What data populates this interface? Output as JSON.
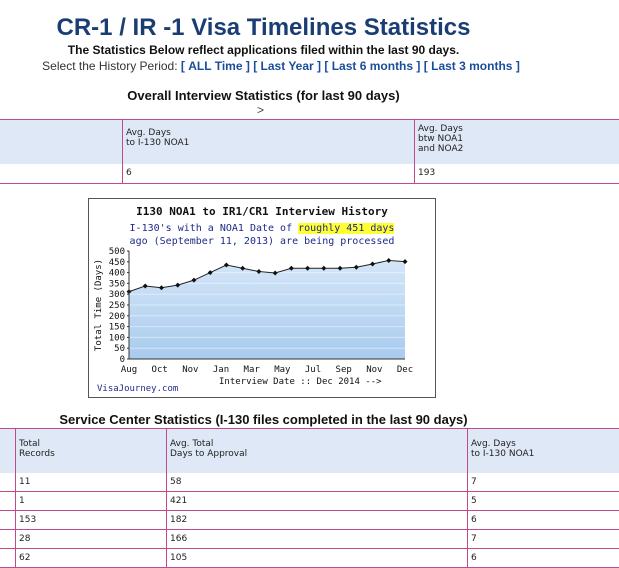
{
  "page": {
    "title": "CR-1 / IR -1 Visa Timelines Statistics",
    "subtitle": "The Statistics Below reflect applications filed within the last 90 days.",
    "period_label": "Select the History Period:",
    "period_links": [
      "ALL Time",
      "Last Year",
      "Last 6 months",
      "Last 3 months"
    ]
  },
  "overall": {
    "heading": "Overall Interview Statistics (for last 90 days)",
    "arrow": ">",
    "col1": "Avg. Days\nto I-130 NOA1",
    "col2": "Avg. Days\nbtw NOA1\nand NOA2",
    "val1": "6",
    "val2": "193"
  },
  "chart_data": {
    "type": "area",
    "title": "I130 NOA1 to IR1/CR1 Interview History",
    "sub1_pre": "I-130's with a NOA1 Date of",
    "sub1_hl": "roughly 451 days",
    "sub2": "ago (September 11, 2013) are being processed",
    "ylabel": "Total Time (Days)",
    "xlabel": "Interview Date :: Dec 2014 -->",
    "credit": "VisaJourney.com",
    "ylim": [
      0,
      500
    ],
    "yticks": [
      0,
      50,
      100,
      150,
      200,
      250,
      300,
      350,
      400,
      450,
      500
    ],
    "xticks": [
      "Aug",
      "Oct",
      "Nov",
      "Jan",
      "Mar",
      "May",
      "Jul",
      "Sep",
      "Nov",
      "Dec"
    ],
    "values": [
      312,
      338,
      330,
      342,
      365,
      400,
      435,
      420,
      405,
      398,
      420,
      420,
      420,
      420,
      425,
      440,
      456,
      451
    ],
    "color_fill": "#a9cbee",
    "color_line": "#222222"
  },
  "service": {
    "heading": "Service Center Statistics (I-130 files completed in the last 90 days)",
    "headers": [
      "Total\nRecords",
      "Avg. Total\nDays to Approval",
      "Avg. Days\nto I-130 NOA1"
    ],
    "rows": [
      [
        "11",
        "58",
        "7"
      ],
      [
        "1",
        "421",
        "5"
      ],
      [
        "153",
        "182",
        "6"
      ],
      [
        "28",
        "166",
        "7"
      ],
      [
        "62",
        "105",
        "6"
      ]
    ]
  }
}
